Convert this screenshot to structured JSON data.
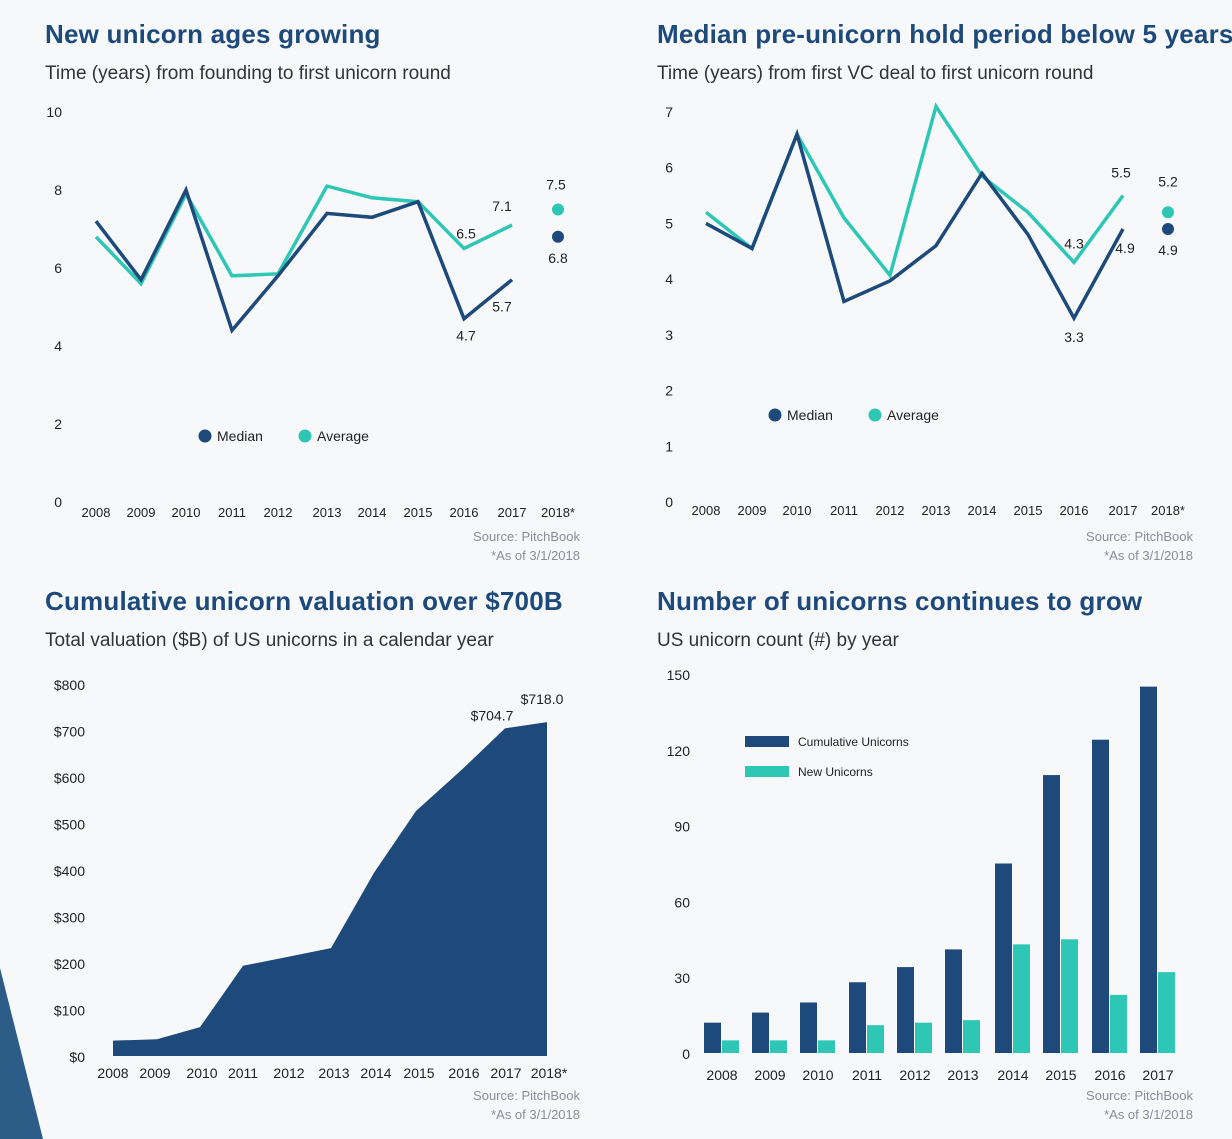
{
  "colors": {
    "dark": "#1d4a7a",
    "teal": "#2ec6b4",
    "wedge": "#2e5c88"
  },
  "panels": [
    {
      "title": "New unicorn ages growing",
      "subtitle": "Time (years) from founding to first unicorn round",
      "source": "Source: PitchBook",
      "note": "*As of 3/1/2018"
    },
    {
      "title": "Median pre-unicorn hold period below 5 years",
      "subtitle": "Time (years) from first VC deal to first unicorn round",
      "source": "Source: PitchBook",
      "note": "*As of 3/1/2018"
    },
    {
      "title": "Cumulative unicorn valuation over $700B",
      "subtitle": "Total valuation ($B) of US unicorns in a calendar year",
      "source": "Source: PitchBook",
      "note": "*As of 3/1/2018"
    },
    {
      "title": "Number of unicorns continues to grow",
      "subtitle": "US unicorn count (#) by year",
      "source": "Source: PitchBook",
      "note": "*As of 3/1/2018"
    }
  ],
  "chart_data": [
    {
      "type": "line",
      "title": "New unicorn ages growing",
      "subtitle": "Time (years) from founding to first unicorn round",
      "categories": [
        "2008",
        "2009",
        "2010",
        "2011",
        "2012",
        "2013",
        "2014",
        "2015",
        "2016",
        "2017",
        "2018*"
      ],
      "yticks": [
        "0",
        "2",
        "4",
        "6",
        "8",
        "10"
      ],
      "ylim": [
        0,
        10
      ],
      "series": [
        {
          "name": "Median",
          "color": "#1d4a7a",
          "values": [
            7.2,
            5.7,
            8.0,
            4.4,
            5.8,
            7.4,
            7.3,
            7.7,
            4.7,
            5.7,
            6.8
          ]
        },
        {
          "name": "Average",
          "color": "#2ec6b4",
          "values": [
            6.8,
            5.6,
            7.9,
            5.8,
            5.85,
            8.1,
            7.8,
            7.7,
            6.5,
            7.1,
            7.5
          ]
        }
      ],
      "data_labels": [
        {
          "series": "Average",
          "index": 8,
          "text": "6.5"
        },
        {
          "series": "Average",
          "index": 9,
          "text": "7.1"
        },
        {
          "series": "Average",
          "index": 10,
          "text": "7.5"
        },
        {
          "series": "Median",
          "index": 8,
          "text": "4.7"
        },
        {
          "series": "Median",
          "index": 9,
          "text": "5.7"
        },
        {
          "series": "Median",
          "index": 10,
          "text": "6.8"
        }
      ],
      "legend": [
        "Median",
        "Average"
      ],
      "legend_position": "bottom-center"
    },
    {
      "type": "line",
      "title": "Median pre-unicorn hold period below 5 years",
      "subtitle": "Time (years) from first VC deal to first unicorn round",
      "categories": [
        "2008",
        "2009",
        "2010",
        "2011",
        "2012",
        "2013",
        "2014",
        "2015",
        "2016",
        "2017",
        "2018*"
      ],
      "yticks": [
        "0",
        "1",
        "2",
        "3",
        "4",
        "5",
        "6",
        "7"
      ],
      "ylim": [
        0,
        7
      ],
      "series": [
        {
          "name": "Median",
          "color": "#1d4a7a",
          "values": [
            5.0,
            4.55,
            6.6,
            3.6,
            3.97,
            4.6,
            5.9,
            4.8,
            3.3,
            4.9,
            4.9
          ]
        },
        {
          "name": "Average",
          "color": "#2ec6b4",
          "values": [
            5.2,
            4.55,
            6.6,
            5.1,
            4.07,
            7.1,
            5.85,
            5.2,
            4.3,
            5.5,
            5.2
          ]
        }
      ],
      "data_labels": [
        {
          "series": "Average",
          "index": 8,
          "text": "4.3"
        },
        {
          "series": "Average",
          "index": 9,
          "text": "5.5"
        },
        {
          "series": "Average",
          "index": 10,
          "text": "5.2"
        },
        {
          "series": "Median",
          "index": 8,
          "text": "3.3"
        },
        {
          "series": "Median",
          "index": 9,
          "text": "4.9"
        },
        {
          "series": "Median",
          "index": 10,
          "text": "4.9"
        }
      ],
      "legend": [
        "Median",
        "Average"
      ],
      "legend_position": "bottom-left"
    },
    {
      "type": "area",
      "title": "Cumulative unicorn valuation over $700B",
      "subtitle": "Total valuation ($B) of US unicorns in a calendar year",
      "categories": [
        "2008",
        "2009",
        "2010",
        "2011",
        "2012",
        "2013",
        "2014",
        "2015",
        "2016",
        "2017",
        "2018*"
      ],
      "yticks": [
        "$0",
        "$100",
        "$200",
        "$300",
        "$400",
        "$500",
        "$600",
        "$700",
        "$800"
      ],
      "ylim": [
        0,
        800
      ],
      "series": [
        {
          "name": "Total valuation",
          "color": "#1d4a7a",
          "values": [
            33,
            36,
            62,
            194,
            213,
            232,
            394,
            527,
            616,
            704.7,
            718.0
          ]
        }
      ],
      "data_labels": [
        {
          "index": 9,
          "text": "$704.7"
        },
        {
          "index": 10,
          "text": "$718.0"
        }
      ]
    },
    {
      "type": "bar",
      "title": "Number of unicorns continues to grow",
      "subtitle": "US unicorn count (#) by year",
      "categories": [
        "2008",
        "2009",
        "2010",
        "2011",
        "2012",
        "2013",
        "2014",
        "2015",
        "2016",
        "2017"
      ],
      "yticks": [
        "0",
        "30",
        "60",
        "90",
        "120",
        "150"
      ],
      "ylim": [
        0,
        150
      ],
      "series": [
        {
          "name": "Cumulative Unicorns",
          "color": "#1d4a7a",
          "values": [
            12,
            16,
            20,
            28,
            34,
            41,
            75,
            110,
            124,
            145
          ]
        },
        {
          "name": "New Unicorns",
          "color": "#2ec6b4",
          "values": [
            5,
            5,
            5,
            11,
            12,
            13,
            43,
            45,
            23,
            32
          ]
        }
      ],
      "legend": [
        "Cumulative Unicorns",
        "New Unicorns"
      ],
      "legend_position": "top-left"
    }
  ]
}
